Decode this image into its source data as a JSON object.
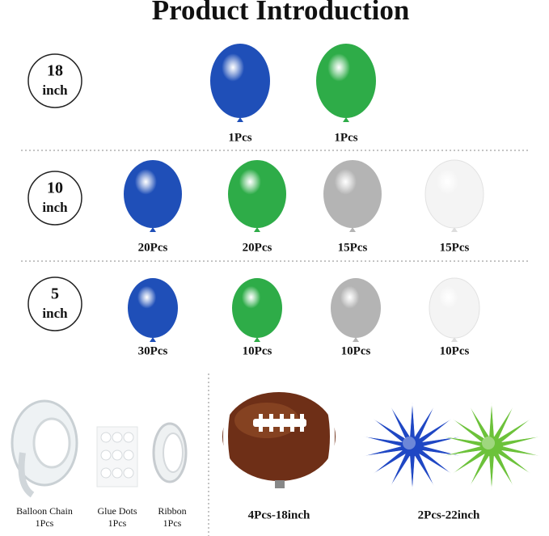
{
  "title": "Product Introduction",
  "rows": [
    {
      "size": {
        "number": "18",
        "unit": "inch"
      },
      "items": [
        {
          "count": "1Pcs",
          "color": "#1f4fb8"
        },
        {
          "count": "1Pcs",
          "color": "#2eac48"
        }
      ]
    },
    {
      "size": {
        "number": "10",
        "unit": "inch"
      },
      "items": [
        {
          "count": "20Pcs",
          "color": "#1f4fb8"
        },
        {
          "count": "20Pcs",
          "color": "#2eac48"
        },
        {
          "count": "15Pcs",
          "color": "#b4b4b4"
        },
        {
          "count": "15Pcs",
          "color": "#f4f4f4"
        }
      ]
    },
    {
      "size": {
        "number": "5",
        "unit": "inch"
      },
      "items": [
        {
          "count": "30Pcs",
          "color": "#1f4fb8"
        },
        {
          "count": "10Pcs",
          "color": "#2eac48"
        },
        {
          "count": "10Pcs",
          "color": "#b4b4b4"
        },
        {
          "count": "10Pcs",
          "color": "#f4f4f4"
        }
      ]
    }
  ],
  "accessories": [
    {
      "name": "Balloon Chain",
      "count": "1Pcs"
    },
    {
      "name": "Glue Dots",
      "count": "1Pcs"
    },
    {
      "name": "Ribbon",
      "count": "1Pcs"
    }
  ],
  "football": {
    "label": "4Pcs-18inch"
  },
  "starbursts": {
    "label": "2Pcs-22inch",
    "colors": [
      "#1f47c4",
      "#6cc23a"
    ]
  }
}
